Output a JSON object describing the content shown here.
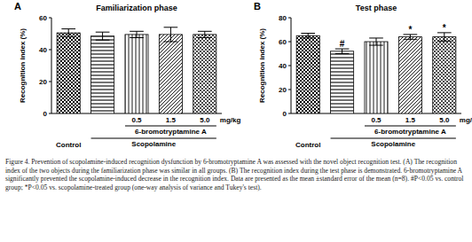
{
  "chart_data": [
    {
      "type": "bar",
      "panel": "A",
      "title": "Familiarization phase",
      "ylabel": "Recognition index (%)",
      "categories": [
        "Control",
        null,
        "0.5",
        "1.5",
        "5.0"
      ],
      "values": [
        50.5,
        48.5,
        49.5,
        49.5,
        49.5
      ],
      "errors": [
        2.5,
        2.5,
        2,
        4.5,
        2
      ],
      "color": "#000000",
      "dose_unit": "mg/kg",
      "group_labels": [
        {
          "label": "6-bromotryptamine A",
          "from": 2,
          "to": 4
        },
        {
          "label": "Scopolamine",
          "from": 1,
          "to": 4
        }
      ],
      "ylim": [
        0,
        60
      ],
      "yticks": [
        0,
        20,
        40,
        60
      ],
      "grid": false
    },
    {
      "type": "bar",
      "panel": "B",
      "title": "Test phase",
      "ylabel": "Recognition index (%)",
      "categories": [
        "Control",
        null,
        "0.5",
        "1.5",
        "5.0"
      ],
      "values": [
        65,
        52,
        60,
        64,
        64
      ],
      "errors": [
        2,
        2,
        3,
        2,
        3.5
      ],
      "significance": [
        null,
        "#",
        null,
        "*",
        "*"
      ],
      "color": "#000000",
      "dose_unit": "mg/kg",
      "group_labels": [
        {
          "label": "6-bromotryptamine A",
          "from": 2,
          "to": 4
        },
        {
          "label": "Scopolamine",
          "from": 1,
          "to": 4
        }
      ],
      "ylim": [
        0,
        80
      ],
      "yticks": [
        0,
        20,
        40,
        60,
        80
      ],
      "grid": false
    }
  ],
  "caption": "Figure 4. Prevention of scopolamine-induced recognition dysfunction by 6-bromotryptamine A was assessed with the novel object recognition test. (A) The recognition index of the two objects during the familiarization phase was similar in all groups. (B) The recognition index during the test phase is demonstrated. 6-bromotryptamine A significantly prevented the scopolamine-induced decrease in the recognition index. Data are presented as the mean ±standard error of the mean (n=8). #P<0.05 vs. control group; *P<0.05 vs. scopolamine-treated group (one-way analysis of variance and Tukey's test)."
}
